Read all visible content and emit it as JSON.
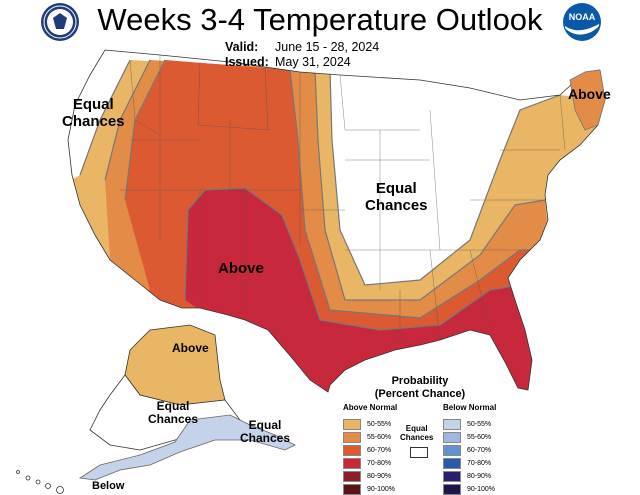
{
  "title": "Weeks 3-4 Temperature Outlook",
  "valid_label": "Valid:",
  "valid_value": "June 15 - 28, 2024",
  "issued_label": "Issued:",
  "issued_value": "May 31, 2024",
  "logos": {
    "left": "commerce-seal",
    "right": "noaa-logo",
    "right_text": "NOAA"
  },
  "map_labels": {
    "west_equal": "Equal\nChances",
    "central_equal": "Equal\nChances",
    "northeast_above": "Above",
    "southwest_above": "Above",
    "alaska_above": "Above",
    "alaska_equal": "Equal\nChances",
    "southeast_ak_equal": "Equal\nChances",
    "alaska_below": "Below"
  },
  "legend": {
    "title": "Probability\n(Percent Chance)",
    "above_header": "Above Normal",
    "below_header": "Below Normal",
    "equal_label": "Equal\nChances",
    "above": [
      {
        "label": "50-55%",
        "color": "#e8b664"
      },
      {
        "label": "55-60%",
        "color": "#e38c48"
      },
      {
        "label": "60-70%",
        "color": "#dc5a32"
      },
      {
        "label": "70-80%",
        "color": "#c8283c"
      },
      {
        "label": "80-90%",
        "color": "#8c1e2a"
      },
      {
        "label": "90-100%",
        "color": "#5a1414"
      }
    ],
    "below": [
      {
        "label": "50-55%",
        "color": "#c4d2ea"
      },
      {
        "label": "55-60%",
        "color": "#9fb8de"
      },
      {
        "label": "60-70%",
        "color": "#5f94cc"
      },
      {
        "label": "70-80%",
        "color": "#2a5aa8"
      },
      {
        "label": "80-90%",
        "color": "#27206e"
      },
      {
        "label": "90-100%",
        "color": "#1c1450"
      }
    ]
  }
}
